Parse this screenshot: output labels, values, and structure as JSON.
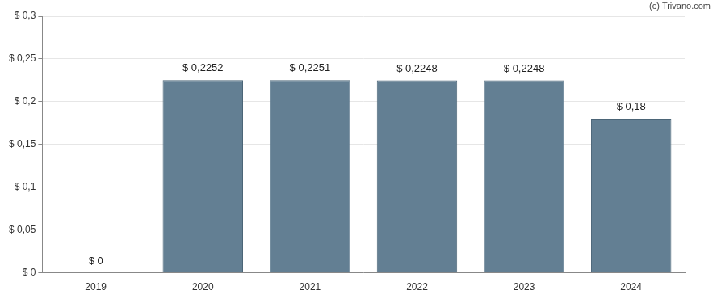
{
  "chart_data": {
    "type": "bar",
    "annotations": [
      "(c) Trivano.com"
    ],
    "categories": [
      "2019",
      "2020",
      "2021",
      "2022",
      "2023",
      "2024"
    ],
    "values": [
      0,
      0.2252,
      0.2251,
      0.2248,
      0.2248,
      0.18
    ],
    "value_labels": [
      "$ 0",
      "$ 0,2252",
      "$ 0,2251",
      "$ 0,2248",
      "$ 0,2248",
      "$ 0,18"
    ],
    "data_labels": true,
    "color": "#637f93",
    "ylim": [
      0,
      0.3
    ],
    "yticks": [
      {
        "value": 0,
        "label": "$ 0"
      },
      {
        "value": 0.05,
        "label": "$ 0,05"
      },
      {
        "value": 0.1,
        "label": "$ 0,1"
      },
      {
        "value": 0.15,
        "label": "$ 0,15"
      },
      {
        "value": 0.2,
        "label": "$ 0,2"
      },
      {
        "value": 0.25,
        "label": "$ 0,25"
      },
      {
        "value": 0.3,
        "label": "$ 0,3"
      }
    ],
    "grid": true
  }
}
